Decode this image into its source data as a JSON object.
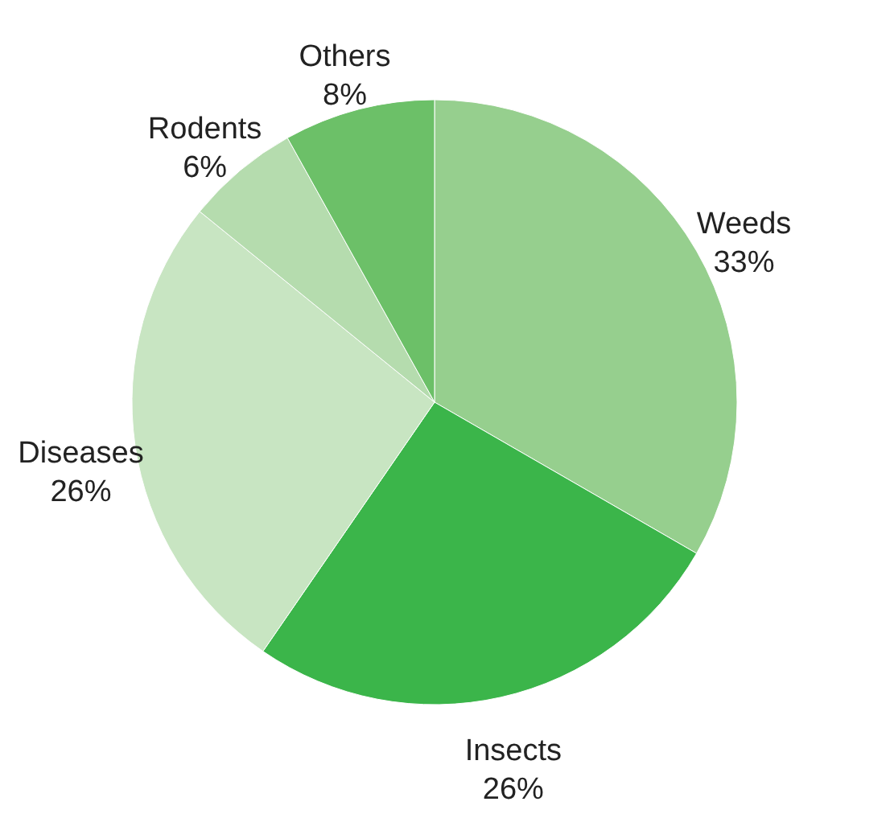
{
  "chart_data": {
    "type": "pie",
    "categories": [
      "Weeds",
      "Insects",
      "Diseases",
      "Rodents",
      "Others"
    ],
    "values": [
      33,
      26,
      26,
      6,
      8
    ],
    "value_labels": [
      "33%",
      "26%",
      "26%",
      "6%",
      "8%"
    ],
    "colors": [
      "#96cf8e",
      "#3bb54a",
      "#c8e5c2",
      "#b5dcae",
      "#6cc068"
    ],
    "legend": false
  }
}
